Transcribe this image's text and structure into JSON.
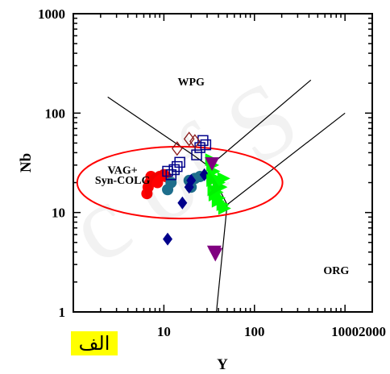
{
  "chart_data": {
    "type": "scatter",
    "xscale": "log",
    "yscale": "log",
    "xlim": [
      1,
      2000
    ],
    "ylim": [
      1,
      1000
    ],
    "xlabel": "Y",
    "ylabel": "Nb",
    "x_tick_labels": [
      "10",
      "100",
      "1000",
      "2000"
    ],
    "y_tick_labels": [
      "1",
      "10",
      "100",
      "1000"
    ],
    "grid": false,
    "regions": [
      {
        "label": "WPG",
        "at": [
          20,
          190
        ]
      },
      {
        "label": "VAG+",
        "at": [
          3.5,
          24.5
        ]
      },
      {
        "label": "Syn-COLG",
        "at": [
          3.5,
          19.5
        ]
      },
      {
        "label": "ORG",
        "at": [
          800,
          2.4
        ]
      }
    ],
    "boundaries": [
      {
        "points": [
          [
            2.4,
            145
          ],
          [
            21,
            38
          ],
          [
            30,
            30
          ],
          [
            40,
            35
          ],
          [
            420,
            215
          ]
        ]
      },
      {
        "points": [
          [
            30,
            30
          ],
          [
            50,
            12
          ]
        ]
      },
      {
        "points": [
          [
            50,
            12
          ],
          [
            1000,
            100
          ]
        ]
      },
      {
        "points": [
          [
            50,
            12
          ],
          [
            38,
            1
          ]
        ]
      }
    ],
    "highlight_circle": {
      "center": [
        15,
        20
      ],
      "radius_x": 13.6,
      "radius_y": 2.3
    },
    "series": [
      {
        "marker": "circle-filled",
        "color": "#ff0000",
        "points": [
          [
            6.5,
            15.5
          ],
          [
            6.7,
            18
          ],
          [
            7,
            20
          ],
          [
            7.2,
            23
          ],
          [
            8,
            22
          ],
          [
            8.5,
            20
          ],
          [
            9,
            23
          ],
          [
            10,
            24
          ],
          [
            10.5,
            23
          ]
        ]
      },
      {
        "marker": "circle-filled",
        "color": "#1e6e8c",
        "points": [
          [
            11,
            17
          ],
          [
            12,
            20
          ],
          [
            19,
            21
          ],
          [
            20,
            18
          ],
          [
            22,
            22
          ],
          [
            25,
            23
          ]
        ]
      },
      {
        "marker": "square-open",
        "color": "#00008b",
        "points": [
          [
            11,
            26
          ],
          [
            12,
            24
          ],
          [
            13,
            27
          ],
          [
            14,
            29
          ],
          [
            15,
            32
          ],
          [
            23,
            38
          ],
          [
            25,
            45
          ],
          [
            27,
            53
          ],
          [
            29,
            48
          ]
        ]
      },
      {
        "marker": "diamond-open",
        "color": "#8b1a1a",
        "points": [
          [
            14,
            44
          ],
          [
            19,
            55
          ],
          [
            22,
            52
          ]
        ]
      },
      {
        "marker": "diamond-filled",
        "color": "#00008b",
        "points": [
          [
            11,
            5.4
          ],
          [
            16,
            12.5
          ],
          [
            19,
            18
          ],
          [
            20,
            21
          ],
          [
            28,
            24
          ]
        ]
      },
      {
        "marker": "triangle-right",
        "color": "#00ff00",
        "points": [
          [
            33,
            34
          ],
          [
            35,
            26
          ],
          [
            37,
            22
          ],
          [
            40,
            20
          ],
          [
            42,
            18
          ],
          [
            38,
            16
          ],
          [
            36,
            15
          ],
          [
            40,
            14
          ],
          [
            44,
            12
          ],
          [
            46,
            11
          ],
          [
            39,
            13
          ],
          [
            35,
            17
          ],
          [
            34,
            30
          ],
          [
            45,
            22
          ],
          [
            34,
            21
          ]
        ]
      },
      {
        "marker": "triangle-down",
        "color": "#800080",
        "points": [
          [
            34,
            31
          ],
          [
            36,
            4
          ],
          [
            37,
            3.8
          ]
        ]
      }
    ]
  },
  "badge_text": "الف",
  "watermark_text": "c of S"
}
